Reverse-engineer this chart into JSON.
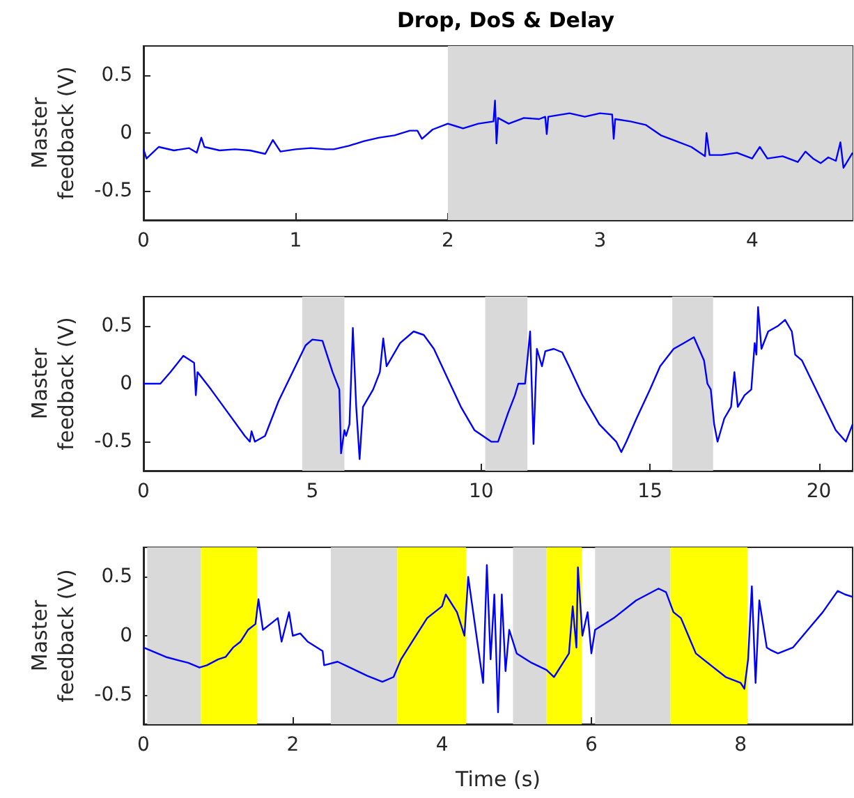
{
  "chart_data": [
    {
      "type": "line",
      "title": "Drop, DoS & Delay",
      "ylabel": "Master feedback (V)",
      "xlim": [
        0,
        4.66
      ],
      "xticks": [
        0,
        1,
        2,
        3,
        4
      ],
      "ylim": [
        -0.75,
        0.75
      ],
      "yticks": [
        -0.5,
        0,
        0.5
      ],
      "bands": [
        {
          "axis": "x",
          "from": 2,
          "to": 4.66,
          "color": "#d9d9d9"
        }
      ],
      "series": [
        {
          "color": "#0000ff",
          "x": [
            0,
            0.02,
            0.1,
            0.2,
            0.3,
            0.35,
            0.38,
            0.4,
            0.5,
            0.6,
            0.7,
            0.8,
            0.85,
            0.9,
            1.0,
            1.1,
            1.2,
            1.25,
            1.35,
            1.45,
            1.55,
            1.65,
            1.75,
            1.8,
            1.83,
            1.9,
            2.0,
            2.05,
            2.1,
            2.2,
            2.3,
            2.31,
            2.32,
            2.33,
            2.4,
            2.5,
            2.6,
            2.64,
            2.65,
            2.66,
            2.8,
            2.9,
            3.0,
            3.08,
            3.09,
            3.1,
            3.2,
            3.3,
            3.4,
            3.5,
            3.6,
            3.69,
            3.7,
            3.72,
            3.8,
            3.9,
            4.0,
            4.05,
            4.1,
            4.2,
            4.3,
            4.35,
            4.4,
            4.45,
            4.5,
            4.55,
            4.58,
            4.6,
            4.66
          ],
          "values": [
            -0.14,
            -0.22,
            -0.12,
            -0.15,
            -0.13,
            -0.17,
            -0.04,
            -0.12,
            -0.15,
            -0.14,
            -0.15,
            -0.18,
            -0.06,
            -0.16,
            -0.14,
            -0.13,
            -0.14,
            -0.14,
            -0.11,
            -0.07,
            -0.04,
            -0.02,
            0.02,
            0.02,
            -0.05,
            0.03,
            0.08,
            0.06,
            0.04,
            0.08,
            0.1,
            0.28,
            -0.09,
            0.13,
            0.08,
            0.13,
            0.12,
            0.14,
            -0.01,
            0.14,
            0.17,
            0.14,
            0.17,
            0.16,
            -0.05,
            0.12,
            0.1,
            0.07,
            -0.02,
            -0.07,
            -0.12,
            -0.2,
            0,
            -0.19,
            -0.19,
            -0.17,
            -0.22,
            -0.12,
            -0.22,
            -0.2,
            -0.25,
            -0.16,
            -0.22,
            -0.26,
            -0.21,
            -0.24,
            -0.08,
            -0.3,
            -0.17
          ]
        }
      ]
    },
    {
      "type": "line",
      "ylabel": "Master feedback (V)",
      "xlim": [
        0,
        21
      ],
      "xticks": [
        0,
        5,
        10,
        15,
        20
      ],
      "ylim": [
        -0.75,
        0.75
      ],
      "yticks": [
        -0.5,
        0,
        0.5
      ],
      "bands": [
        {
          "axis": "x",
          "from": 4.7,
          "to": 5.95,
          "color": "#d9d9d9"
        },
        {
          "axis": "x",
          "from": 10.12,
          "to": 11.37,
          "color": "#d9d9d9"
        },
        {
          "axis": "x",
          "from": 15.66,
          "to": 16.87,
          "color": "#d9d9d9"
        }
      ],
      "series": [
        {
          "color": "#0000ff",
          "x": [
            0,
            0.5,
            0.8,
            1.18,
            1.5,
            1.55,
            1.6,
            2.0,
            2.5,
            3.0,
            3.15,
            3.2,
            3.3,
            3.6,
            4.0,
            4.5,
            4.8,
            5.0,
            5.3,
            5.6,
            5.8,
            5.85,
            5.9,
            5.95,
            6.0,
            6.1,
            6.2,
            6.3,
            6.4,
            6.5,
            6.8,
            7.0,
            7.1,
            7.2,
            7.6,
            8.0,
            8.3,
            8.6,
            9.0,
            9.4,
            9.8,
            10.3,
            10.5,
            10.8,
            11.0,
            11.1,
            11.3,
            11.4,
            11.45,
            11.55,
            11.65,
            11.75,
            11.8,
            11.9,
            12.15,
            12.4,
            12.6,
            13.0,
            13.5,
            14.0,
            14.15,
            14.3,
            14.6,
            15.0,
            15.3,
            15.7,
            16.0,
            16.3,
            16.6,
            16.7,
            16.8,
            16.9,
            17.0,
            17.05,
            17.1,
            17.2,
            17.3,
            17.4,
            17.5,
            17.6,
            17.8,
            18.0,
            18.1,
            18.15,
            18.2,
            18.3,
            18.5,
            18.8,
            19.0,
            19.2,
            19.3,
            19.5,
            20.0,
            20.5,
            20.8,
            21.0
          ],
          "values": [
            0,
            0,
            0.1,
            0.24,
            0.18,
            -0.1,
            0.1,
            -0.05,
            -0.25,
            -0.45,
            -0.5,
            -0.41,
            -0.5,
            -0.45,
            -0.15,
            0.15,
            0.33,
            0.38,
            0.37,
            0.1,
            -0.05,
            -0.6,
            null,
            -0.4,
            -0.45,
            -0.35,
            0.48,
            -0.2,
            -0.65,
            -0.2,
            -0.05,
            0.1,
            0.39,
            0.15,
            0.35,
            0.45,
            0.42,
            0.3,
            0.05,
            -0.2,
            -0.4,
            -0.5,
            -0.5,
            -0.25,
            -0.1,
            0,
            0,
            null,
            0.45,
            -0.52,
            0.3,
            null,
            0.15,
            0.28,
            0.3,
            0.27,
            0.15,
            -0.1,
            -0.35,
            -0.5,
            -0.59,
            -0.5,
            -0.3,
            -0.05,
            0.15,
            0.3,
            0.35,
            0.4,
            0.2,
            0,
            -0.05,
            -0.35,
            -0.5,
            -0.45,
            null,
            -0.3,
            null,
            -0.2,
            0.1,
            -0.2,
            -0.1,
            -0.05,
            0.35,
            0.25,
            0.66,
            0.3,
            0.45,
            0.5,
            0.55,
            0.45,
            0.25,
            0.2,
            -0.1,
            -0.4,
            -0.5,
            -0.35
          ]
        }
      ]
    },
    {
      "type": "line",
      "ylabel": "Master feedback (V)",
      "xlabel": "Time (s)",
      "xlim": [
        0,
        9.5
      ],
      "xticks": [
        0,
        2,
        4,
        6,
        8
      ],
      "ylim": [
        -0.75,
        0.75
      ],
      "yticks": [
        -0.5,
        0,
        0.5
      ],
      "bands": [
        {
          "axis": "x",
          "from": 0.05,
          "to": 0.77,
          "color": "#d9d9d9"
        },
        {
          "axis": "x",
          "from": 0.77,
          "to": 1.52,
          "color": "#ffff00"
        },
        {
          "axis": "x",
          "from": 2.51,
          "to": 3.4,
          "color": "#d9d9d9"
        },
        {
          "axis": "x",
          "from": 3.4,
          "to": 4.32,
          "color": "#ffff00"
        },
        {
          "axis": "x",
          "from": 4.95,
          "to": 5.4,
          "color": "#d9d9d9"
        },
        {
          "axis": "x",
          "from": 5.4,
          "to": 5.87,
          "color": "#ffff00"
        },
        {
          "axis": "x",
          "from": 6.05,
          "to": 7.06,
          "color": "#d9d9d9"
        },
        {
          "axis": "x",
          "from": 7.06,
          "to": 8.09,
          "color": "#ffff00"
        }
      ],
      "series": [
        {
          "color": "#0000ff",
          "x": [
            0,
            0.3,
            0.6,
            0.75,
            0.85,
            1.0,
            1.1,
            1.2,
            1.3,
            1.4,
            1.5,
            1.54,
            1.6,
            1.7,
            1.8,
            1.85,
            1.95,
            2.0,
            2.1,
            2.2,
            2.4,
            2.42,
            2.6,
            2.8,
            3.0,
            3.2,
            3.35,
            3.45,
            3.6,
            3.8,
            4.0,
            4.05,
            4.2,
            4.3,
            4.32,
            4.35,
            4.4,
            4.5,
            4.55,
            4.6,
            4.65,
            4.7,
            4.75,
            4.8,
            4.85,
            4.9,
            5.0,
            5.2,
            5.4,
            5.5,
            5.6,
            5.7,
            5.75,
            5.8,
            5.82,
            5.88,
            5.95,
            6.0,
            6.05,
            6.3,
            6.6,
            6.9,
            7.0,
            7.1,
            7.2,
            7.3,
            7.4,
            7.6,
            7.8,
            8.0,
            8.05,
            8.1,
            8.15,
            8.2,
            8.25,
            8.31,
            8.35,
            8.4,
            8.5,
            8.7,
            8.9,
            9.1,
            9.3,
            9.4,
            9.5
          ],
          "values": [
            -0.1,
            -0.18,
            -0.23,
            -0.27,
            -0.25,
            -0.2,
            -0.18,
            -0.1,
            -0.05,
            0.05,
            0.1,
            0.31,
            0.05,
            0.1,
            0.15,
            -0.05,
            0.2,
            0,
            0.02,
            -0.05,
            -0.13,
            -0.25,
            -0.22,
            -0.28,
            -0.34,
            -0.39,
            -0.35,
            -0.2,
            -0.05,
            0.15,
            0.25,
            0.35,
            0.2,
            0,
            null,
            0.5,
            null,
            null,
            -0.4,
            0.6,
            -0.2,
            0.35,
            -0.65,
            0.35,
            -0.3,
            0.05,
            -0.15,
            -0.23,
            -0.29,
            -0.35,
            -0.25,
            -0.15,
            0.25,
            -0.1,
            0.58,
            0,
            0.2,
            -0.15,
            0.05,
            0.15,
            0.3,
            0.4,
            0.37,
            0.2,
            0.15,
            0,
            -0.15,
            -0.25,
            -0.35,
            -0.4,
            -0.45,
            -0.2,
            0.42,
            -0.4,
            0.3,
            null,
            -0.1,
            -0.12,
            -0.15,
            -0.1,
            0.05,
            0.2,
            0.38,
            0.35,
            0.33
          ]
        }
      ]
    }
  ]
}
